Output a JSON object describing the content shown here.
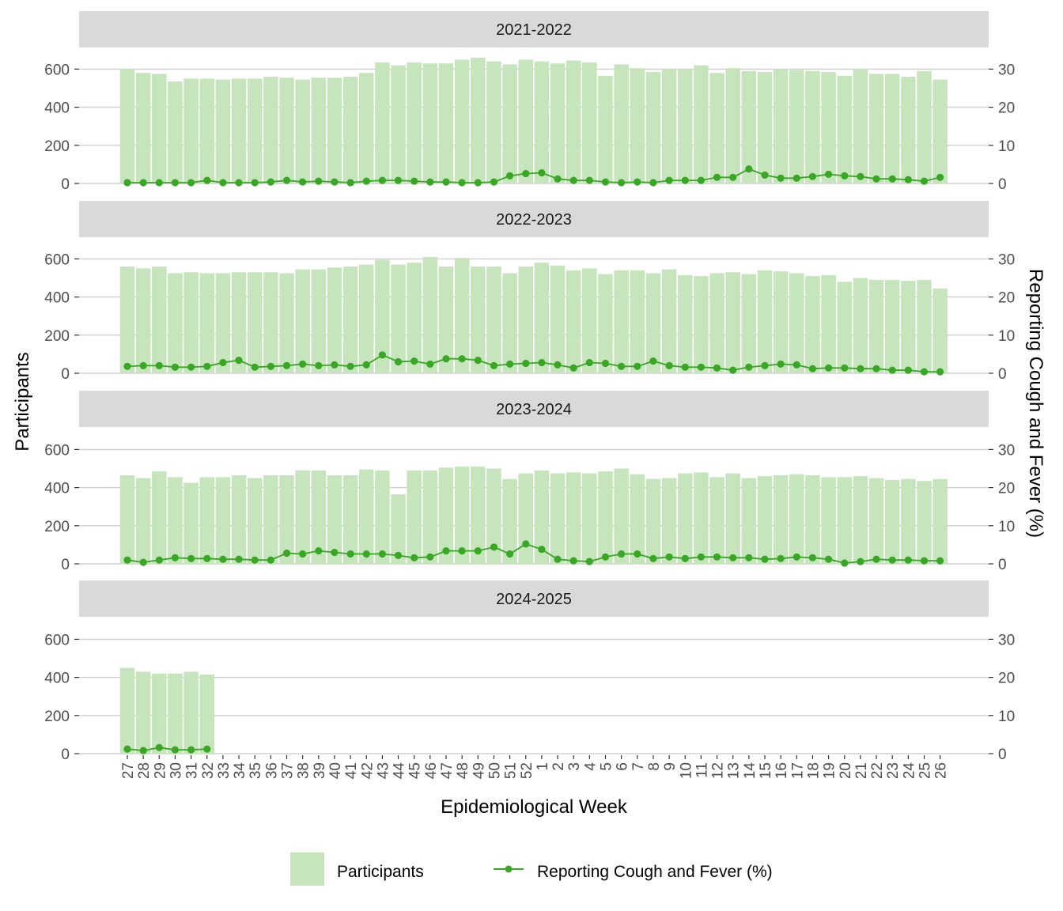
{
  "chart_data": {
    "type": "bar+line",
    "xlabel": "Epidemiological Week",
    "ylabel_left": "Participants",
    "ylabel_right": "Reporting Cough and Fever (%)",
    "ylim_left": [
      0,
      700
    ],
    "ylim_right": [
      0,
      35
    ],
    "yticks_left": [
      "0",
      "200",
      "400",
      "600"
    ],
    "yticks_right": [
      "0",
      "10",
      "20",
      "30"
    ],
    "grid": "horizontal",
    "legend_position": "bottom",
    "legend": [
      {
        "label": "Participants",
        "type": "bar"
      },
      {
        "label": "Reporting Cough and Fever (%)",
        "type": "line"
      }
    ],
    "colors": {
      "bar": "#c6e5bc",
      "line": "#3aa626",
      "strip": "#d9d9d9",
      "grid": "#cfcfcf"
    },
    "x_labels": [
      "27",
      "28",
      "29",
      "30",
      "31",
      "32",
      "33",
      "34",
      "35",
      "36",
      "37",
      "38",
      "39",
      "40",
      "41",
      "42",
      "43",
      "44",
      "45",
      "46",
      "47",
      "48",
      "49",
      "50",
      "51",
      "52",
      "1",
      "2",
      "3",
      "4",
      "5",
      "6",
      "7",
      "8",
      "9",
      "10",
      "11",
      "12",
      "13",
      "14",
      "15",
      "16",
      "17",
      "18",
      "19",
      "20",
      "21",
      "22",
      "23",
      "24",
      "25",
      "26"
    ],
    "panels": [
      {
        "title": "2021-2022",
        "series": [
          {
            "name": "Participants",
            "values": [
              600,
              580,
              575,
              535,
              550,
              550,
              545,
              550,
              550,
              560,
              555,
              545,
              555,
              555,
              560,
              580,
              635,
              620,
              635,
              630,
              630,
              650,
              660,
              640,
              625,
              650,
              640,
              630,
              645,
              635,
              565,
              625,
              605,
              585,
              600,
              600,
              620,
              580,
              605,
              590,
              585,
              600,
              595,
              590,
              585,
              565,
              600,
              575,
              575,
              560,
              590,
              545
            ]
          },
          {
            "name": "Reporting Cough and Fever (%)",
            "values": [
              0.2,
              0.2,
              0.2,
              0.2,
              0.2,
              0.8,
              0.2,
              0.2,
              0.2,
              0.4,
              0.8,
              0.4,
              0.6,
              0.4,
              0.2,
              0.6,
              0.8,
              0.8,
              0.6,
              0.4,
              0.4,
              0.2,
              0.2,
              0.4,
              2.0,
              2.6,
              2.8,
              1.2,
              0.8,
              0.8,
              0.4,
              0.2,
              0.4,
              0.2,
              0.8,
              0.8,
              0.8,
              1.6,
              1.6,
              3.8,
              2.2,
              1.4,
              1.4,
              1.8,
              2.4,
              2.0,
              1.8,
              1.2,
              1.2,
              1.0,
              0.6,
              1.6
            ]
          }
        ]
      },
      {
        "title": "2022-2023",
        "series": [
          {
            "name": "Participants",
            "values": [
              560,
              550,
              560,
              525,
              530,
              525,
              525,
              530,
              530,
              530,
              525,
              545,
              545,
              555,
              560,
              570,
              595,
              570,
              580,
              610,
              560,
              605,
              560,
              560,
              525,
              560,
              580,
              565,
              540,
              550,
              520,
              540,
              540,
              525,
              545,
              515,
              510,
              525,
              530,
              520,
              540,
              535,
              525,
              510,
              515,
              480,
              500,
              490,
              490,
              485,
              490,
              445
            ]
          },
          {
            "name": "Reporting Cough and Fever (%)",
            "values": [
              1.8,
              2.0,
              2.0,
              1.6,
              1.6,
              1.8,
              2.8,
              3.4,
              1.6,
              1.8,
              2.0,
              2.4,
              2.0,
              2.2,
              1.8,
              2.2,
              4.8,
              3.0,
              3.2,
              2.4,
              3.8,
              3.8,
              3.4,
              2.0,
              2.4,
              2.6,
              2.8,
              2.2,
              1.4,
              2.8,
              2.6,
              1.8,
              1.8,
              3.2,
              2.0,
              1.6,
              1.6,
              1.4,
              0.8,
              1.6,
              2.0,
              2.4,
              2.2,
              1.2,
              1.4,
              1.4,
              1.2,
              1.2,
              0.8,
              0.8,
              0.4,
              0.4
            ]
          }
        ]
      },
      {
        "title": "2023-2024",
        "series": [
          {
            "name": "Participants",
            "values": [
              465,
              450,
              485,
              455,
              425,
              455,
              455,
              465,
              450,
              465,
              465,
              490,
              490,
              465,
              465,
              495,
              490,
              365,
              490,
              490,
              505,
              510,
              510,
              500,
              445,
              475,
              490,
              475,
              480,
              475,
              485,
              500,
              470,
              445,
              450,
              475,
              480,
              455,
              475,
              450,
              460,
              465,
              470,
              465,
              455,
              455,
              460,
              450,
              440,
              445,
              435,
              445
            ]
          },
          {
            "name": "Reporting Cough and Fever (%)",
            "values": [
              1.0,
              0.4,
              1.0,
              1.6,
              1.4,
              1.4,
              1.2,
              1.2,
              1.0,
              1.0,
              2.8,
              2.6,
              3.4,
              3.0,
              2.6,
              2.6,
              2.6,
              2.2,
              1.6,
              1.8,
              3.4,
              3.4,
              3.4,
              4.4,
              2.6,
              5.2,
              3.8,
              1.2,
              0.8,
              0.6,
              1.8,
              2.6,
              2.6,
              1.4,
              1.8,
              1.4,
              1.8,
              1.8,
              1.6,
              1.6,
              1.2,
              1.4,
              1.8,
              1.6,
              1.2,
              0.2,
              0.6,
              1.2,
              1.0,
              1.0,
              0.8,
              0.8
            ]
          }
        ]
      },
      {
        "title": "2024-2025",
        "series": [
          {
            "name": "Participants",
            "values": [
              450,
              430,
              420,
              420,
              430,
              415
            ]
          },
          {
            "name": "Reporting Cough and Fever (%)",
            "values": [
              1.2,
              0.8,
              1.6,
              1.0,
              1.0,
              1.2
            ]
          }
        ]
      }
    ]
  }
}
